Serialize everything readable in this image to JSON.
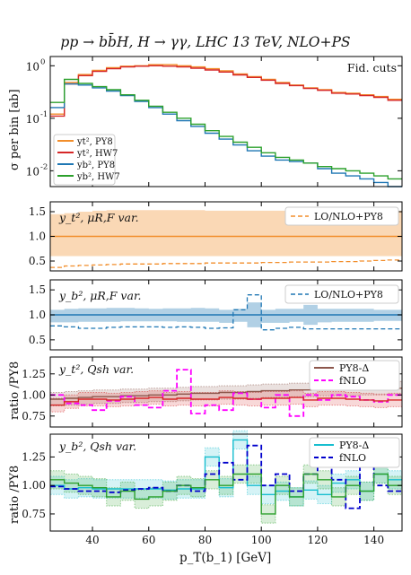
{
  "title": "pp → bb̄H, H → γγ, LHC 13 TeV, NLO+PS",
  "x_axis": {
    "label": "p_T(b_1) [GeV]",
    "range": [
      25,
      150
    ],
    "ticks": [
      40,
      60,
      80,
      100,
      120,
      140
    ]
  },
  "colors": {
    "orange": "#f28e2b",
    "red": "#d62728",
    "blue": "#1f77b4",
    "green": "#2ca02c",
    "brown": "#8c564b",
    "magenta": "#ff00ff",
    "cyan": "#17becf",
    "navy": "#0000cc"
  },
  "chart_data": [
    {
      "type": "line",
      "panel": "main",
      "ylabel": "σ per bin [ab]",
      "yscale": "log",
      "ylim": [
        0.005,
        1.5
      ],
      "yticks": [
        "10^0",
        "10^-1",
        "10^-2"
      ],
      "annotation": "Fid. cuts",
      "legend_position": "lower-left",
      "x_edges": [
        25,
        30,
        35,
        40,
        45,
        50,
        55,
        60,
        65,
        70,
        75,
        80,
        85,
        90,
        95,
        100,
        105,
        110,
        115,
        120,
        125,
        130,
        135,
        140,
        145,
        150
      ],
      "series": [
        {
          "name": "y_t^2, PY8",
          "color": "orange",
          "values": [
            0.12,
            0.48,
            0.68,
            0.82,
            0.92,
            0.98,
            1.0,
            1.05,
            1.05,
            1.0,
            0.95,
            0.88,
            0.8,
            0.7,
            0.62,
            0.55,
            0.48,
            0.43,
            0.38,
            0.35,
            0.31,
            0.3,
            0.28,
            0.26,
            0.23
          ]
        },
        {
          "name": "y_t^2, HW7",
          "color": "red",
          "values": [
            0.11,
            0.45,
            0.65,
            0.78,
            0.88,
            0.95,
            0.98,
            1.0,
            0.98,
            0.95,
            0.9,
            0.83,
            0.76,
            0.67,
            0.6,
            0.53,
            0.46,
            0.42,
            0.37,
            0.34,
            0.3,
            0.29,
            0.27,
            0.25,
            0.22
          ]
        },
        {
          "name": "y_b^2, PY8",
          "color": "blue",
          "values": [
            0.16,
            0.45,
            0.43,
            0.38,
            0.33,
            0.27,
            0.21,
            0.16,
            0.12,
            0.09,
            0.07,
            0.052,
            0.04,
            0.031,
            0.024,
            0.019,
            0.016,
            0.015,
            0.014,
            0.011,
            0.009,
            0.008,
            0.007,
            0.006,
            0.005
          ]
        },
        {
          "name": "y_b^2, HW7",
          "color": "green",
          "values": [
            0.2,
            0.55,
            0.46,
            0.4,
            0.35,
            0.28,
            0.22,
            0.17,
            0.13,
            0.1,
            0.077,
            0.058,
            0.045,
            0.035,
            0.028,
            0.022,
            0.018,
            0.016,
            0.014,
            0.012,
            0.011,
            0.01,
            0.009,
            0.008,
            0.007
          ]
        }
      ]
    },
    {
      "type": "area",
      "panel": "ratio-yt-mu",
      "annotation": "y_t^2, μ_{R,F} var.",
      "ylim": [
        0.3,
        1.7
      ],
      "yticks": [
        0.5,
        1.0,
        1.5
      ],
      "color": "orange",
      "band_low": [
        0.6,
        0.6,
        0.6,
        0.6,
        0.6,
        0.6,
        0.6,
        0.6,
        0.6,
        0.6,
        0.6,
        0.6,
        0.6,
        0.6,
        0.6,
        0.6,
        0.6,
        0.6,
        0.6,
        0.6,
        0.6,
        0.6,
        0.6,
        0.6,
        0.6
      ],
      "band_high": [
        1.45,
        1.47,
        1.5,
        1.52,
        1.53,
        1.53,
        1.53,
        1.53,
        1.53,
        1.53,
        1.53,
        1.52,
        1.52,
        1.52,
        1.52,
        1.52,
        1.52,
        1.52,
        1.52,
        1.52,
        1.52,
        1.52,
        1.52,
        1.52,
        1.52
      ],
      "central": 1.0,
      "series": [
        {
          "name": "LO/NLO+PY8",
          "dashed": true,
          "values": [
            0.37,
            0.4,
            0.41,
            0.42,
            0.43,
            0.44,
            0.44,
            0.44,
            0.45,
            0.45,
            0.45,
            0.46,
            0.46,
            0.46,
            0.46,
            0.47,
            0.47,
            0.48,
            0.48,
            0.48,
            0.49,
            0.49,
            0.5,
            0.51,
            0.52
          ]
        }
      ]
    },
    {
      "type": "area",
      "panel": "ratio-yb-mu",
      "annotation": "y_b^2, μ_{R,F} var.",
      "ylim": [
        0.3,
        1.7
      ],
      "yticks": [
        0.5,
        1.0,
        1.5
      ],
      "color": "blue",
      "band_low": [
        0.85,
        0.85,
        0.86,
        0.86,
        0.86,
        0.87,
        0.87,
        0.87,
        0.87,
        0.86,
        0.86,
        0.86,
        0.84,
        0.86,
        0.75,
        0.84,
        0.84,
        0.86,
        0.8,
        0.85,
        0.86,
        0.86,
        0.86,
        0.88,
        0.88
      ],
      "band_high": [
        1.1,
        1.12,
        1.13,
        1.13,
        1.14,
        1.14,
        1.13,
        1.12,
        1.13,
        1.13,
        1.14,
        1.13,
        1.1,
        1.12,
        1.25,
        1.1,
        1.12,
        1.12,
        1.2,
        1.12,
        1.12,
        1.12,
        1.12,
        1.1,
        1.1
      ],
      "central": 1.0,
      "series": [
        {
          "name": "LO/NLO+PY8",
          "dashed": true,
          "values": [
            0.78,
            0.76,
            0.73,
            0.73,
            0.75,
            0.76,
            0.76,
            0.76,
            0.75,
            0.76,
            0.75,
            0.73,
            0.74,
            1.1,
            1.4,
            0.7,
            0.73,
            0.75,
            0.72,
            0.72,
            0.72,
            0.72,
            0.72,
            0.72,
            0.72
          ]
        }
      ]
    },
    {
      "type": "line",
      "panel": "ratio-yt-qsh",
      "annotation": "y_t^2, Q_{sh} var.",
      "ylabel": "ratio /PY8",
      "ylim": [
        0.62,
        1.45
      ],
      "yticks": [
        0.75,
        1.0,
        1.25
      ],
      "series": [
        {
          "name": "PY8-Δ",
          "color": "brown",
          "values": [
            0.95,
            0.96,
            0.97,
            0.98,
            0.98,
            0.99,
            0.99,
            1.0,
            1.0,
            1.01,
            1.02,
            1.02,
            1.03,
            1.03,
            1.04,
            1.05,
            1.05,
            1.06,
            1.06,
            1.07,
            1.07,
            1.07,
            1.08,
            1.08,
            1.08
          ]
        },
        {
          "name": "fNLO",
          "color": "magenta",
          "dashed": true,
          "values": [
            1.0,
            0.9,
            0.88,
            0.82,
            0.93,
            0.98,
            0.88,
            0.85,
            1.05,
            1.3,
            0.78,
            0.88,
            0.82,
            1.02,
            0.95,
            0.85,
            1.0,
            0.75,
            1.0,
            0.94,
            1.0,
            0.98,
            0.94,
            0.92,
            1.0
          ]
        },
        {
          "name": "HW7",
          "color": "red",
          "values": [
            0.88,
            0.92,
            0.95,
            0.95,
            0.94,
            0.95,
            0.96,
            0.97,
            0.95,
            0.96,
            0.95,
            0.95,
            0.97,
            0.96,
            0.95,
            0.96,
            0.96,
            0.97,
            0.94,
            0.96,
            0.96,
            0.95,
            0.94,
            0.93,
            0.94
          ]
        }
      ]
    },
    {
      "type": "line",
      "panel": "ratio-yb-qsh",
      "annotation": "y_b^2, Q_{sh} var.",
      "ylabel": "ratio /PY8",
      "ylim": [
        0.6,
        1.45
      ],
      "yticks": [
        0.75,
        1.0,
        1.25
      ],
      "series": [
        {
          "name": "PY8-Δ",
          "color": "cyan",
          "values": [
            1.0,
            0.97,
            0.98,
            0.97,
            0.97,
            0.97,
            0.97,
            0.97,
            0.96,
            0.97,
            0.97,
            1.25,
            0.98,
            1.4,
            1.0,
            0.92,
            0.95,
            0.9,
            0.96,
            0.92,
            1.02,
            1.05,
            0.95,
            1.1,
            1.05
          ]
        },
        {
          "name": "fNLO",
          "color": "navy",
          "dashed": true,
          "values": [
            0.99,
            0.97,
            0.95,
            0.95,
            0.94,
            0.96,
            0.97,
            0.98,
            0.95,
            1.0,
            0.95,
            1.1,
            1.2,
            1.05,
            1.35,
            1.0,
            1.1,
            0.95,
            1.1,
            1.18,
            1.05,
            0.8,
            1.2,
            1.0,
            0.95
          ]
        },
        {
          "name": "HW7",
          "color": "green",
          "values": [
            1.05,
            1.02,
            1.0,
            0.98,
            0.9,
            0.95,
            0.88,
            0.9,
            0.95,
            1.0,
            0.98,
            1.05,
            1.0,
            1.1,
            1.1,
            0.75,
            1.0,
            0.9,
            1.1,
            1.05,
            0.9,
            1.0,
            0.95,
            1.1,
            1.0
          ]
        }
      ]
    }
  ]
}
